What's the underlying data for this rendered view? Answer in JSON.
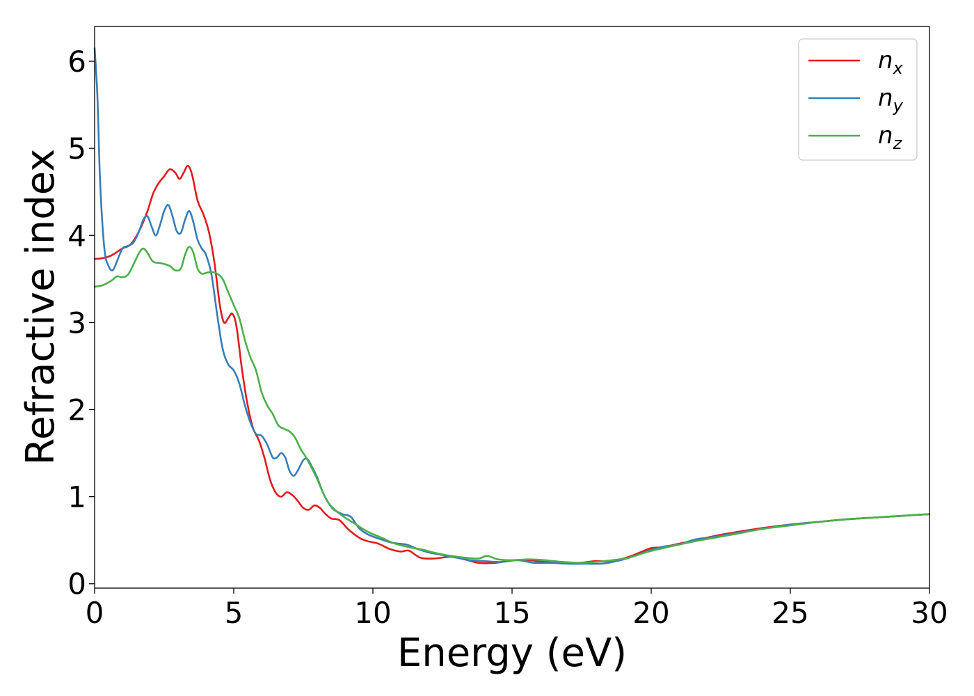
{
  "chart_data": {
    "type": "line",
    "xlabel": "Energy (eV)",
    "ylabel": "Refractive index",
    "xlim": [
      0,
      30
    ],
    "ylim": [
      -0.05,
      6.4
    ],
    "xticks": [
      0,
      5,
      10,
      15,
      20,
      25,
      30
    ],
    "xtick_labels": [
      "0",
      "5",
      "10",
      "15",
      "20",
      "25",
      "30"
    ],
    "yticks": [
      0,
      1,
      2,
      3,
      4,
      5,
      6
    ],
    "ytick_labels": [
      "0",
      "1",
      "2",
      "3",
      "4",
      "5",
      "6"
    ],
    "grid": false,
    "legend_position": "top-right",
    "series": [
      {
        "name": "n",
        "subscript": "x",
        "color": "#e41a1c",
        "points": [
          [
            0,
            3.73
          ],
          [
            0.3,
            3.74
          ],
          [
            0.6,
            3.77
          ],
          [
            1.0,
            3.85
          ],
          [
            1.3,
            3.9
          ],
          [
            1.6,
            4.05
          ],
          [
            1.9,
            4.28
          ],
          [
            2.1,
            4.48
          ],
          [
            2.3,
            4.6
          ],
          [
            2.5,
            4.68
          ],
          [
            2.7,
            4.76
          ],
          [
            2.9,
            4.72
          ],
          [
            3.05,
            4.65
          ],
          [
            3.2,
            4.72
          ],
          [
            3.35,
            4.8
          ],
          [
            3.5,
            4.7
          ],
          [
            3.7,
            4.4
          ],
          [
            3.9,
            4.25
          ],
          [
            4.1,
            4.05
          ],
          [
            4.3,
            3.7
          ],
          [
            4.5,
            3.2
          ],
          [
            4.65,
            3.0
          ],
          [
            4.8,
            3.05
          ],
          [
            4.95,
            3.1
          ],
          [
            5.1,
            2.95
          ],
          [
            5.3,
            2.45
          ],
          [
            5.5,
            2.05
          ],
          [
            5.7,
            1.78
          ],
          [
            5.9,
            1.65
          ],
          [
            6.1,
            1.45
          ],
          [
            6.3,
            1.2
          ],
          [
            6.5,
            1.05
          ],
          [
            6.7,
            1.0
          ],
          [
            6.9,
            1.05
          ],
          [
            7.1,
            1.02
          ],
          [
            7.3,
            0.95
          ],
          [
            7.5,
            0.87
          ],
          [
            7.7,
            0.85
          ],
          [
            7.9,
            0.9
          ],
          [
            8.1,
            0.87
          ],
          [
            8.3,
            0.8
          ],
          [
            8.5,
            0.75
          ],
          [
            8.8,
            0.73
          ],
          [
            9.1,
            0.63
          ],
          [
            9.5,
            0.53
          ],
          [
            9.8,
            0.49
          ],
          [
            10.2,
            0.46
          ],
          [
            10.6,
            0.4
          ],
          [
            11.0,
            0.37
          ],
          [
            11.3,
            0.38
          ],
          [
            11.7,
            0.3
          ],
          [
            12.2,
            0.29
          ],
          [
            12.8,
            0.31
          ],
          [
            13.3,
            0.28
          ],
          [
            13.8,
            0.24
          ],
          [
            14.4,
            0.24
          ],
          [
            15.0,
            0.27
          ],
          [
            15.6,
            0.27
          ],
          [
            16.2,
            0.25
          ],
          [
            16.8,
            0.25
          ],
          [
            17.4,
            0.24
          ],
          [
            18.0,
            0.26
          ],
          [
            18.6,
            0.26
          ],
          [
            19.2,
            0.31
          ],
          [
            19.6,
            0.36
          ],
          [
            20.0,
            0.41
          ],
          [
            20.4,
            0.42
          ],
          [
            21.0,
            0.46
          ],
          [
            21.6,
            0.5
          ],
          [
            22.3,
            0.55
          ],
          [
            23.0,
            0.59
          ],
          [
            24.0,
            0.64
          ],
          [
            25.0,
            0.68
          ],
          [
            26.0,
            0.71
          ],
          [
            27.0,
            0.74
          ],
          [
            28.0,
            0.76
          ],
          [
            29.0,
            0.78
          ],
          [
            30.0,
            0.8
          ]
        ]
      },
      {
        "name": "n",
        "subscript": "y",
        "color": "#377eb8",
        "points": [
          [
            0,
            6.15
          ],
          [
            0.1,
            5.6
          ],
          [
            0.2,
            4.6
          ],
          [
            0.35,
            3.85
          ],
          [
            0.5,
            3.65
          ],
          [
            0.65,
            3.6
          ],
          [
            0.8,
            3.7
          ],
          [
            1.0,
            3.85
          ],
          [
            1.2,
            3.88
          ],
          [
            1.4,
            3.92
          ],
          [
            1.6,
            4.05
          ],
          [
            1.75,
            4.18
          ],
          [
            1.9,
            4.22
          ],
          [
            2.05,
            4.1
          ],
          [
            2.2,
            4.0
          ],
          [
            2.35,
            4.12
          ],
          [
            2.5,
            4.28
          ],
          [
            2.65,
            4.35
          ],
          [
            2.8,
            4.22
          ],
          [
            2.95,
            4.05
          ],
          [
            3.1,
            4.03
          ],
          [
            3.25,
            4.18
          ],
          [
            3.4,
            4.28
          ],
          [
            3.55,
            4.15
          ],
          [
            3.7,
            3.95
          ],
          [
            3.85,
            3.85
          ],
          [
            4.0,
            3.78
          ],
          [
            4.2,
            3.55
          ],
          [
            4.4,
            3.1
          ],
          [
            4.6,
            2.7
          ],
          [
            4.8,
            2.52
          ],
          [
            5.0,
            2.45
          ],
          [
            5.2,
            2.3
          ],
          [
            5.4,
            2.05
          ],
          [
            5.6,
            1.85
          ],
          [
            5.8,
            1.72
          ],
          [
            6.0,
            1.7
          ],
          [
            6.2,
            1.6
          ],
          [
            6.4,
            1.45
          ],
          [
            6.55,
            1.45
          ],
          [
            6.7,
            1.5
          ],
          [
            6.85,
            1.45
          ],
          [
            7.0,
            1.3
          ],
          [
            7.15,
            1.24
          ],
          [
            7.3,
            1.3
          ],
          [
            7.5,
            1.42
          ],
          [
            7.65,
            1.43
          ],
          [
            7.8,
            1.35
          ],
          [
            8.0,
            1.22
          ],
          [
            8.2,
            1.05
          ],
          [
            8.4,
            0.93
          ],
          [
            8.6,
            0.85
          ],
          [
            8.9,
            0.8
          ],
          [
            9.2,
            0.77
          ],
          [
            9.5,
            0.64
          ],
          [
            9.8,
            0.57
          ],
          [
            10.2,
            0.52
          ],
          [
            10.7,
            0.47
          ],
          [
            11.2,
            0.45
          ],
          [
            11.6,
            0.4
          ],
          [
            12.0,
            0.36
          ],
          [
            12.5,
            0.33
          ],
          [
            13.0,
            0.3
          ],
          [
            13.5,
            0.27
          ],
          [
            14.0,
            0.26
          ],
          [
            14.6,
            0.25
          ],
          [
            15.2,
            0.27
          ],
          [
            15.8,
            0.24
          ],
          [
            16.4,
            0.24
          ],
          [
            17.0,
            0.23
          ],
          [
            17.6,
            0.23
          ],
          [
            18.2,
            0.23
          ],
          [
            18.6,
            0.25
          ],
          [
            19.0,
            0.28
          ],
          [
            19.5,
            0.33
          ],
          [
            20.0,
            0.39
          ],
          [
            20.5,
            0.43
          ],
          [
            21.0,
            0.45
          ],
          [
            21.6,
            0.51
          ],
          [
            22.3,
            0.54
          ],
          [
            23.0,
            0.58
          ],
          [
            24.0,
            0.63
          ],
          [
            25.0,
            0.68
          ],
          [
            26.0,
            0.71
          ],
          [
            27.0,
            0.74
          ],
          [
            28.0,
            0.76
          ],
          [
            29.0,
            0.78
          ],
          [
            30.0,
            0.8
          ]
        ]
      },
      {
        "name": "n",
        "subscript": "z",
        "color": "#4daf4a",
        "points": [
          [
            0,
            3.41
          ],
          [
            0.3,
            3.43
          ],
          [
            0.6,
            3.48
          ],
          [
            0.8,
            3.53
          ],
          [
            1.0,
            3.52
          ],
          [
            1.2,
            3.55
          ],
          [
            1.4,
            3.67
          ],
          [
            1.6,
            3.8
          ],
          [
            1.75,
            3.85
          ],
          [
            1.9,
            3.8
          ],
          [
            2.1,
            3.7
          ],
          [
            2.4,
            3.68
          ],
          [
            2.7,
            3.65
          ],
          [
            2.9,
            3.6
          ],
          [
            3.1,
            3.62
          ],
          [
            3.25,
            3.78
          ],
          [
            3.4,
            3.87
          ],
          [
            3.55,
            3.8
          ],
          [
            3.7,
            3.62
          ],
          [
            3.85,
            3.56
          ],
          [
            4.0,
            3.57
          ],
          [
            4.2,
            3.58
          ],
          [
            4.4,
            3.56
          ],
          [
            4.6,
            3.5
          ],
          [
            4.8,
            3.35
          ],
          [
            5.0,
            3.2
          ],
          [
            5.2,
            3.05
          ],
          [
            5.4,
            2.8
          ],
          [
            5.6,
            2.6
          ],
          [
            5.8,
            2.45
          ],
          [
            6.0,
            2.2
          ],
          [
            6.2,
            2.05
          ],
          [
            6.4,
            1.95
          ],
          [
            6.6,
            1.82
          ],
          [
            6.8,
            1.78
          ],
          [
            7.0,
            1.75
          ],
          [
            7.2,
            1.68
          ],
          [
            7.4,
            1.55
          ],
          [
            7.6,
            1.45
          ],
          [
            7.8,
            1.33
          ],
          [
            8.0,
            1.2
          ],
          [
            8.2,
            1.05
          ],
          [
            8.4,
            0.93
          ],
          [
            8.7,
            0.83
          ],
          [
            9.0,
            0.76
          ],
          [
            9.4,
            0.68
          ],
          [
            9.8,
            0.6
          ],
          [
            10.3,
            0.53
          ],
          [
            10.8,
            0.46
          ],
          [
            11.3,
            0.42
          ],
          [
            11.8,
            0.39
          ],
          [
            12.3,
            0.35
          ],
          [
            12.8,
            0.32
          ],
          [
            13.3,
            0.3
          ],
          [
            13.8,
            0.29
          ],
          [
            14.1,
            0.32
          ],
          [
            14.5,
            0.28
          ],
          [
            15.0,
            0.27
          ],
          [
            15.6,
            0.28
          ],
          [
            16.2,
            0.27
          ],
          [
            16.8,
            0.25
          ],
          [
            17.4,
            0.24
          ],
          [
            18.0,
            0.25
          ],
          [
            18.6,
            0.27
          ],
          [
            19.2,
            0.3
          ],
          [
            19.8,
            0.36
          ],
          [
            20.3,
            0.4
          ],
          [
            21.0,
            0.45
          ],
          [
            21.6,
            0.49
          ],
          [
            22.3,
            0.53
          ],
          [
            23.0,
            0.57
          ],
          [
            24.0,
            0.63
          ],
          [
            25.0,
            0.67
          ],
          [
            26.0,
            0.71
          ],
          [
            27.0,
            0.74
          ],
          [
            28.0,
            0.76
          ],
          [
            29.0,
            0.78
          ],
          [
            30.0,
            0.8
          ]
        ]
      }
    ]
  }
}
